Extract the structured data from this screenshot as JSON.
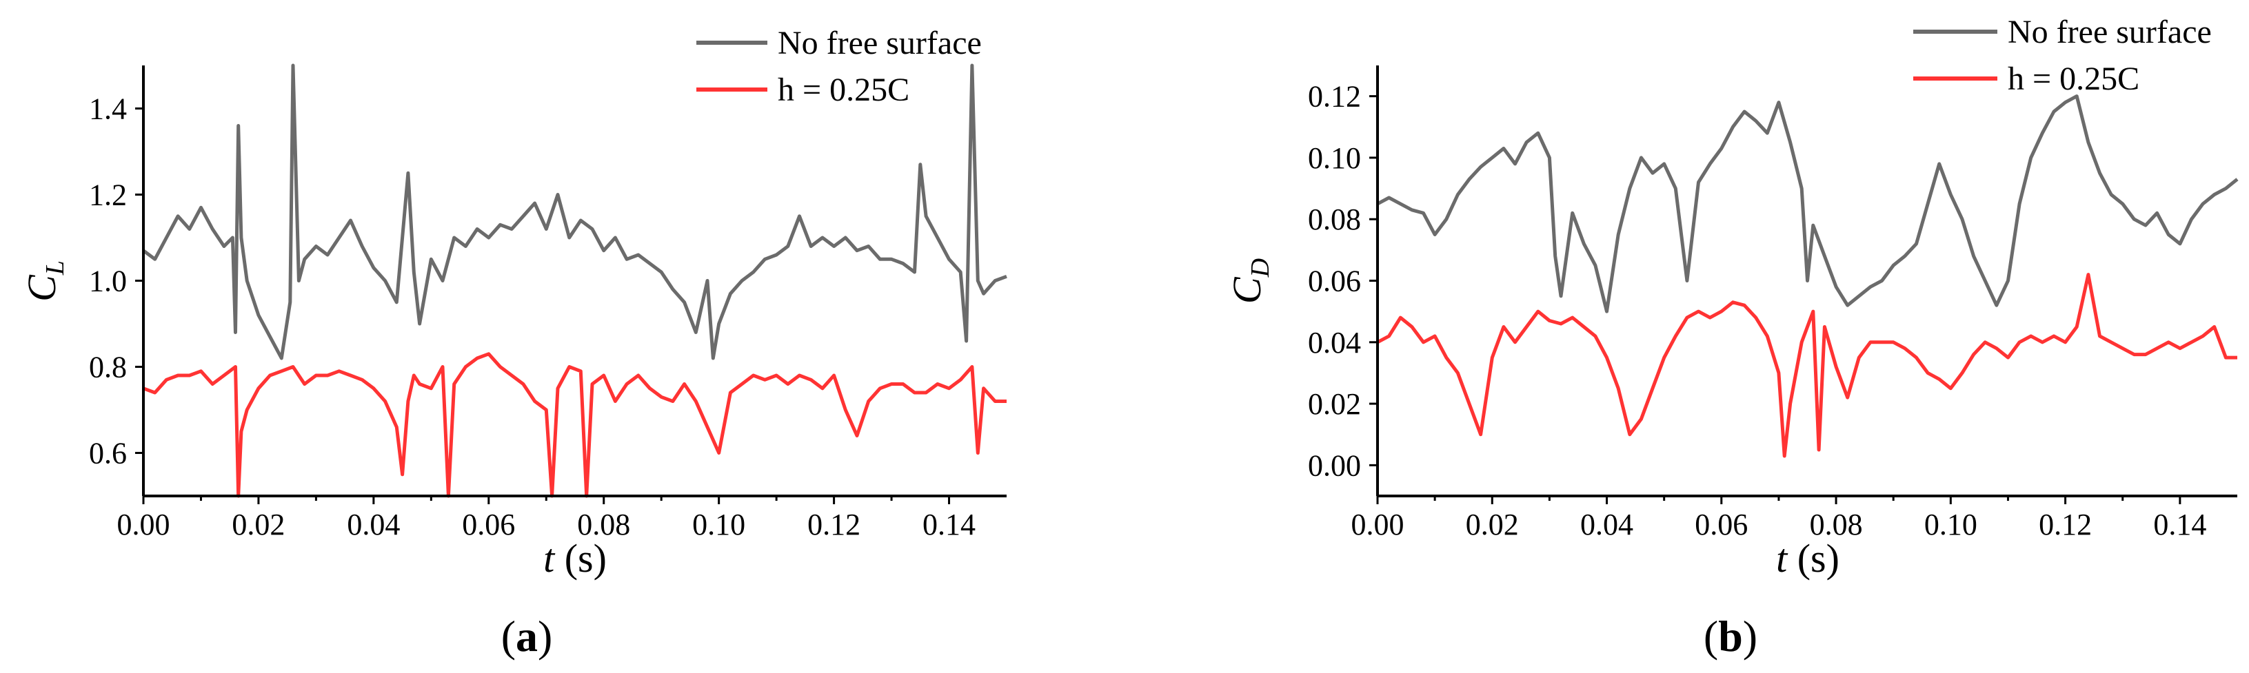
{
  "chart_data": [
    {
      "type": "line",
      "panel_label": {
        "open": "(",
        "letter": "a",
        "close": ")"
      },
      "xlabel": {
        "var": "t",
        "unit": " (s)"
      },
      "ylabel": {
        "main": "C",
        "sub": "L"
      },
      "xlim": [
        0,
        0.15
      ],
      "ylim": [
        0.5,
        1.5
      ],
      "x_ticks": [
        0.0,
        0.02,
        0.04,
        0.06,
        0.08,
        0.1,
        0.12,
        0.14
      ],
      "x_tick_labels": [
        "0.00",
        "0.02",
        "0.04",
        "0.06",
        "0.08",
        "0.10",
        "0.12",
        "0.14"
      ],
      "y_ticks": [
        0.6,
        0.8,
        1.0,
        1.2,
        1.4
      ],
      "y_tick_labels": [
        "0.6",
        "0.8",
        "1.0",
        "1.2",
        "1.4"
      ],
      "legend_placement": "top-right",
      "series": [
        {
          "name": "No free surface",
          "color": "#6b6b6b",
          "x": [
            0.0,
            0.002,
            0.004,
            0.006,
            0.008,
            0.01,
            0.012,
            0.014,
            0.0155,
            0.016,
            0.0165,
            0.017,
            0.018,
            0.02,
            0.022,
            0.024,
            0.0255,
            0.026,
            0.027,
            0.028,
            0.03,
            0.032,
            0.034,
            0.036,
            0.038,
            0.04,
            0.042,
            0.044,
            0.046,
            0.047,
            0.048,
            0.05,
            0.052,
            0.054,
            0.056,
            0.058,
            0.06,
            0.062,
            0.064,
            0.066,
            0.068,
            0.07,
            0.072,
            0.074,
            0.076,
            0.078,
            0.08,
            0.082,
            0.084,
            0.086,
            0.088,
            0.09,
            0.092,
            0.094,
            0.096,
            0.098,
            0.099,
            0.1,
            0.102,
            0.104,
            0.106,
            0.108,
            0.11,
            0.112,
            0.114,
            0.116,
            0.118,
            0.12,
            0.122,
            0.124,
            0.126,
            0.128,
            0.13,
            0.132,
            0.134,
            0.135,
            0.136,
            0.138,
            0.14,
            0.142,
            0.143,
            0.144,
            0.145,
            0.146,
            0.148,
            0.15
          ],
          "y": [
            1.07,
            1.05,
            1.1,
            1.15,
            1.12,
            1.17,
            1.12,
            1.08,
            1.1,
            0.88,
            1.36,
            1.1,
            1.0,
            0.92,
            0.87,
            0.82,
            0.95,
            1.5,
            1.0,
            1.05,
            1.08,
            1.06,
            1.1,
            1.14,
            1.08,
            1.03,
            1.0,
            0.95,
            1.25,
            1.02,
            0.9,
            1.05,
            1.0,
            1.1,
            1.08,
            1.12,
            1.1,
            1.13,
            1.12,
            1.15,
            1.18,
            1.12,
            1.2,
            1.1,
            1.14,
            1.12,
            1.07,
            1.1,
            1.05,
            1.06,
            1.04,
            1.02,
            0.98,
            0.95,
            0.88,
            1.0,
            0.82,
            0.9,
            0.97,
            1.0,
            1.02,
            1.05,
            1.06,
            1.08,
            1.15,
            1.08,
            1.1,
            1.08,
            1.1,
            1.07,
            1.08,
            1.05,
            1.05,
            1.04,
            1.02,
            1.27,
            1.15,
            1.1,
            1.05,
            1.02,
            0.86,
            1.5,
            1.0,
            0.97,
            1.0,
            1.01
          ]
        },
        {
          "name": "h = 0.25C",
          "color": "#ff3333",
          "x": [
            0.0,
            0.002,
            0.004,
            0.006,
            0.008,
            0.01,
            0.012,
            0.014,
            0.016,
            0.0165,
            0.017,
            0.018,
            0.02,
            0.022,
            0.024,
            0.026,
            0.028,
            0.03,
            0.032,
            0.034,
            0.036,
            0.038,
            0.04,
            0.042,
            0.044,
            0.045,
            0.046,
            0.047,
            0.048,
            0.05,
            0.052,
            0.053,
            0.054,
            0.056,
            0.058,
            0.06,
            0.062,
            0.064,
            0.066,
            0.068,
            0.07,
            0.071,
            0.072,
            0.074,
            0.076,
            0.077,
            0.078,
            0.08,
            0.082,
            0.084,
            0.086,
            0.088,
            0.09,
            0.092,
            0.094,
            0.096,
            0.098,
            0.1,
            0.102,
            0.104,
            0.106,
            0.108,
            0.11,
            0.112,
            0.114,
            0.116,
            0.118,
            0.12,
            0.122,
            0.124,
            0.126,
            0.128,
            0.13,
            0.132,
            0.134,
            0.136,
            0.138,
            0.14,
            0.142,
            0.144,
            0.145,
            0.146,
            0.148,
            0.15
          ],
          "y": [
            0.75,
            0.74,
            0.77,
            0.78,
            0.78,
            0.79,
            0.76,
            0.78,
            0.8,
            0.5,
            0.65,
            0.7,
            0.75,
            0.78,
            0.79,
            0.8,
            0.76,
            0.78,
            0.78,
            0.79,
            0.78,
            0.77,
            0.75,
            0.72,
            0.66,
            0.55,
            0.72,
            0.78,
            0.76,
            0.75,
            0.8,
            0.5,
            0.76,
            0.8,
            0.82,
            0.83,
            0.8,
            0.78,
            0.76,
            0.72,
            0.7,
            0.5,
            0.75,
            0.8,
            0.79,
            0.5,
            0.76,
            0.78,
            0.72,
            0.76,
            0.78,
            0.75,
            0.73,
            0.72,
            0.76,
            0.72,
            0.66,
            0.6,
            0.74,
            0.76,
            0.78,
            0.77,
            0.78,
            0.76,
            0.78,
            0.77,
            0.75,
            0.78,
            0.7,
            0.64,
            0.72,
            0.75,
            0.76,
            0.76,
            0.74,
            0.74,
            0.76,
            0.75,
            0.77,
            0.8,
            0.6,
            0.75,
            0.72,
            0.72
          ]
        }
      ]
    },
    {
      "type": "line",
      "panel_label": {
        "open": "(",
        "letter": "b",
        "close": ")"
      },
      "xlabel": {
        "var": "t",
        "unit": " (s)"
      },
      "ylabel": {
        "main": "C",
        "sub": "D"
      },
      "xlim": [
        0,
        0.15
      ],
      "ylim": [
        -0.01,
        0.13
      ],
      "x_ticks": [
        0.0,
        0.02,
        0.04,
        0.06,
        0.08,
        0.1,
        0.12,
        0.14
      ],
      "x_tick_labels": [
        "0.00",
        "0.02",
        "0.04",
        "0.06",
        "0.08",
        "0.10",
        "0.12",
        "0.14"
      ],
      "y_ticks": [
        0.0,
        0.02,
        0.04,
        0.06,
        0.08,
        0.1,
        0.12
      ],
      "y_tick_labels": [
        "0.00",
        "0.02",
        "0.04",
        "0.06",
        "0.08",
        "0.10",
        "0.12"
      ],
      "legend_placement": "top-right",
      "series": [
        {
          "name": "No free surface",
          "color": "#6b6b6b",
          "x": [
            0.0,
            0.002,
            0.004,
            0.006,
            0.008,
            0.01,
            0.012,
            0.014,
            0.016,
            0.018,
            0.02,
            0.022,
            0.024,
            0.026,
            0.028,
            0.03,
            0.031,
            0.032,
            0.034,
            0.036,
            0.038,
            0.04,
            0.042,
            0.044,
            0.046,
            0.048,
            0.05,
            0.052,
            0.054,
            0.056,
            0.058,
            0.06,
            0.062,
            0.064,
            0.066,
            0.068,
            0.07,
            0.072,
            0.074,
            0.075,
            0.076,
            0.078,
            0.08,
            0.082,
            0.084,
            0.086,
            0.088,
            0.09,
            0.092,
            0.094,
            0.096,
            0.098,
            0.1,
            0.102,
            0.104,
            0.106,
            0.108,
            0.11,
            0.112,
            0.114,
            0.116,
            0.118,
            0.12,
            0.122,
            0.124,
            0.126,
            0.128,
            0.13,
            0.132,
            0.134,
            0.136,
            0.138,
            0.14,
            0.142,
            0.144,
            0.146,
            0.148,
            0.15
          ],
          "y": [
            0.085,
            0.087,
            0.085,
            0.083,
            0.082,
            0.075,
            0.08,
            0.088,
            0.093,
            0.097,
            0.1,
            0.103,
            0.098,
            0.105,
            0.108,
            0.1,
            0.068,
            0.055,
            0.082,
            0.072,
            0.065,
            0.05,
            0.075,
            0.09,
            0.1,
            0.095,
            0.098,
            0.09,
            0.06,
            0.092,
            0.098,
            0.103,
            0.11,
            0.115,
            0.112,
            0.108,
            0.118,
            0.105,
            0.09,
            0.06,
            0.078,
            0.068,
            0.058,
            0.052,
            0.055,
            0.058,
            0.06,
            0.065,
            0.068,
            0.072,
            0.085,
            0.098,
            0.088,
            0.08,
            0.068,
            0.06,
            0.052,
            0.06,
            0.085,
            0.1,
            0.108,
            0.115,
            0.118,
            0.12,
            0.105,
            0.095,
            0.088,
            0.085,
            0.08,
            0.078,
            0.082,
            0.075,
            0.072,
            0.08,
            0.085,
            0.088,
            0.09,
            0.093
          ]
        },
        {
          "name": "h = 0.25C",
          "color": "#ff3333",
          "x": [
            0.0,
            0.002,
            0.004,
            0.006,
            0.008,
            0.01,
            0.012,
            0.014,
            0.016,
            0.018,
            0.02,
            0.022,
            0.024,
            0.026,
            0.028,
            0.03,
            0.032,
            0.034,
            0.036,
            0.038,
            0.04,
            0.042,
            0.044,
            0.046,
            0.048,
            0.05,
            0.052,
            0.054,
            0.056,
            0.058,
            0.06,
            0.062,
            0.064,
            0.066,
            0.068,
            0.07,
            0.071,
            0.072,
            0.074,
            0.076,
            0.077,
            0.078,
            0.08,
            0.082,
            0.084,
            0.086,
            0.088,
            0.09,
            0.092,
            0.094,
            0.096,
            0.098,
            0.1,
            0.102,
            0.104,
            0.106,
            0.108,
            0.11,
            0.112,
            0.114,
            0.116,
            0.118,
            0.12,
            0.122,
            0.124,
            0.126,
            0.128,
            0.13,
            0.132,
            0.134,
            0.136,
            0.138,
            0.14,
            0.142,
            0.144,
            0.146,
            0.148,
            0.15
          ],
          "y": [
            0.04,
            0.042,
            0.048,
            0.045,
            0.04,
            0.042,
            0.035,
            0.03,
            0.02,
            0.01,
            0.035,
            0.045,
            0.04,
            0.045,
            0.05,
            0.047,
            0.046,
            0.048,
            0.045,
            0.042,
            0.035,
            0.025,
            0.01,
            0.015,
            0.025,
            0.035,
            0.042,
            0.048,
            0.05,
            0.048,
            0.05,
            0.053,
            0.052,
            0.048,
            0.042,
            0.03,
            0.003,
            0.02,
            0.04,
            0.05,
            0.005,
            0.045,
            0.032,
            0.022,
            0.035,
            0.04,
            0.04,
            0.04,
            0.038,
            0.035,
            0.03,
            0.028,
            0.025,
            0.03,
            0.036,
            0.04,
            0.038,
            0.035,
            0.04,
            0.042,
            0.04,
            0.042,
            0.04,
            0.045,
            0.062,
            0.042,
            0.04,
            0.038,
            0.036,
            0.036,
            0.038,
            0.04,
            0.038,
            0.04,
            0.042,
            0.045,
            0.035,
            0.035
          ]
        }
      ]
    }
  ]
}
